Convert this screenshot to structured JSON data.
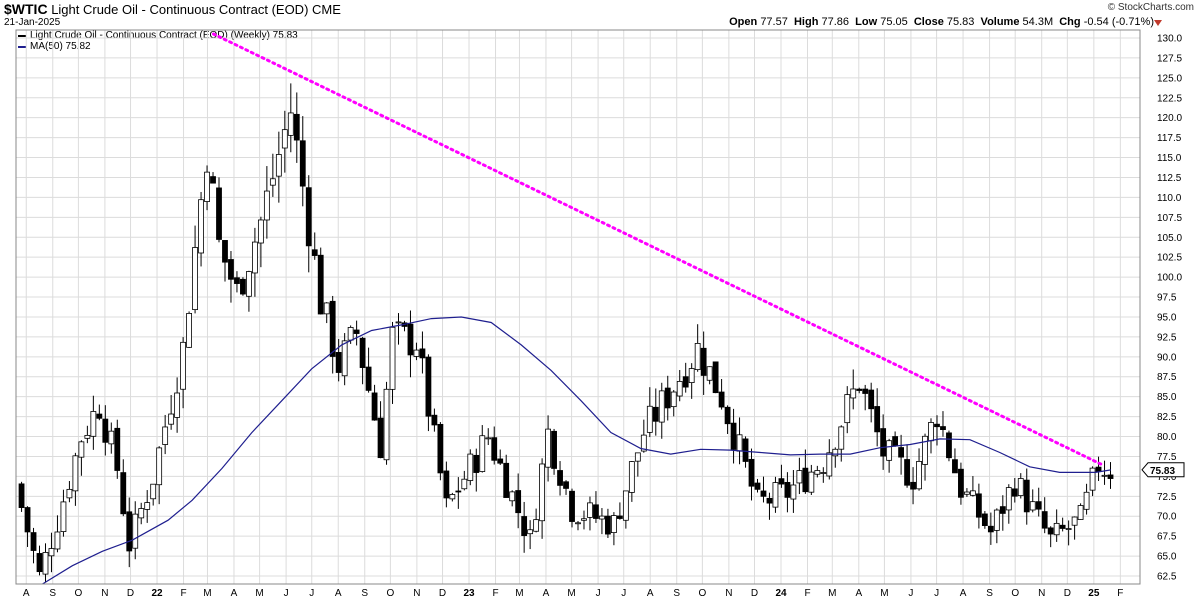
{
  "header": {
    "symbol": "$WTIC",
    "name": "Light Crude Oil - Continuous Contract (EOD)",
    "exchange": "CME",
    "date": "21-Jan-2025",
    "brand": "© StockCharts.com",
    "open_label": "Open",
    "open": "77.57",
    "high_label": "High",
    "high": "77.86",
    "low_label": "Low",
    "low": "75.05",
    "close_label": "Close",
    "close": "75.83",
    "volume_label": "Volume",
    "volume": "54.3M",
    "chg_label": "Chg",
    "chg": "-0.54 (-0.71%)"
  },
  "legend": {
    "price": "Light Crude Oil - Continuous Contract (EOD) (Weekly) 75.83",
    "ma": "MA(50) 75.82"
  },
  "colors": {
    "up": "#ffffff",
    "down": "#000000",
    "ma": "#1f1f8f",
    "trendline": "#ff00ff",
    "grid": "#dcdcdc"
  },
  "chart_data": {
    "type": "line",
    "style": "weekly candlestick",
    "ylim": [
      61.5,
      131
    ],
    "y_ticks": [
      62.5,
      65.0,
      67.5,
      70.0,
      72.5,
      75.0,
      77.5,
      80.0,
      82.5,
      85.0,
      87.5,
      90.0,
      92.5,
      95.0,
      97.5,
      100.0,
      102.5,
      105.0,
      107.5,
      110.0,
      112.5,
      115.0,
      117.5,
      120.0,
      122.5,
      125.0,
      127.5,
      130.0
    ],
    "last_price_label": "75.83",
    "grid": true,
    "x_ticks": [
      {
        "label": "A",
        "date": "2021-08-01"
      },
      {
        "label": "S",
        "date": "2021-09-01"
      },
      {
        "label": "O",
        "date": "2021-10-01"
      },
      {
        "label": "N",
        "date": "2021-11-01"
      },
      {
        "label": "D",
        "date": "2021-12-01"
      },
      {
        "label": "22",
        "date": "2022-01-01",
        "bold": true
      },
      {
        "label": "F",
        "date": "2022-02-01"
      },
      {
        "label": "M",
        "date": "2022-03-01"
      },
      {
        "label": "A",
        "date": "2022-04-01"
      },
      {
        "label": "M",
        "date": "2022-05-01"
      },
      {
        "label": "J",
        "date": "2022-06-01"
      },
      {
        "label": "J",
        "date": "2022-07-01"
      },
      {
        "label": "A",
        "date": "2022-08-01"
      },
      {
        "label": "S",
        "date": "2022-09-01"
      },
      {
        "label": "O",
        "date": "2022-10-01"
      },
      {
        "label": "N",
        "date": "2022-11-01"
      },
      {
        "label": "D",
        "date": "2022-12-01"
      },
      {
        "label": "23",
        "date": "2023-01-01",
        "bold": true
      },
      {
        "label": "F",
        "date": "2023-02-01"
      },
      {
        "label": "M",
        "date": "2023-03-01"
      },
      {
        "label": "A",
        "date": "2023-04-01"
      },
      {
        "label": "M",
        "date": "2023-05-01"
      },
      {
        "label": "J",
        "date": "2023-06-01"
      },
      {
        "label": "J",
        "date": "2023-07-01"
      },
      {
        "label": "A",
        "date": "2023-08-01"
      },
      {
        "label": "S",
        "date": "2023-09-01"
      },
      {
        "label": "O",
        "date": "2023-10-01"
      },
      {
        "label": "N",
        "date": "2023-11-01"
      },
      {
        "label": "D",
        "date": "2023-12-01"
      },
      {
        "label": "24",
        "date": "2024-01-01",
        "bold": true
      },
      {
        "label": "F",
        "date": "2024-02-01"
      },
      {
        "label": "M",
        "date": "2024-03-01"
      },
      {
        "label": "A",
        "date": "2024-04-01"
      },
      {
        "label": "M",
        "date": "2024-05-01"
      },
      {
        "label": "J",
        "date": "2024-06-01"
      },
      {
        "label": "J",
        "date": "2024-07-01"
      },
      {
        "label": "A",
        "date": "2024-08-01"
      },
      {
        "label": "S",
        "date": "2024-09-01"
      },
      {
        "label": "O",
        "date": "2024-10-01"
      },
      {
        "label": "N",
        "date": "2024-11-01"
      },
      {
        "label": "D",
        "date": "2024-12-01"
      },
      {
        "label": "25",
        "date": "2025-01-01",
        "bold": true
      },
      {
        "label": "F",
        "date": "2025-02-01"
      }
    ],
    "price_anchors": [
      {
        "x": "2021-07-23",
        "y": 74
      },
      {
        "x": "2021-08-20",
        "y": 62.5
      },
      {
        "x": "2021-09-10",
        "y": 69.5
      },
      {
        "x": "2021-10-08",
        "y": 80
      },
      {
        "x": "2021-10-29",
        "y": 84
      },
      {
        "x": "2021-11-19",
        "y": 76
      },
      {
        "x": "2021-12-03",
        "y": 66.5
      },
      {
        "x": "2021-12-31",
        "y": 75
      },
      {
        "x": "2022-02-04",
        "y": 91
      },
      {
        "x": "2022-03-04",
        "y": 116
      },
      {
        "x": "2022-03-18",
        "y": 104
      },
      {
        "x": "2022-04-08",
        "y": 98
      },
      {
        "x": "2022-05-06",
        "y": 107
      },
      {
        "x": "2022-06-10",
        "y": 121
      },
      {
        "x": "2022-07-15",
        "y": 97
      },
      {
        "x": "2022-08-05",
        "y": 89
      },
      {
        "x": "2022-08-26",
        "y": 93
      },
      {
        "x": "2022-09-23",
        "y": 79
      },
      {
        "x": "2022-10-07",
        "y": 92.5
      },
      {
        "x": "2022-11-04",
        "y": 92
      },
      {
        "x": "2022-12-09",
        "y": 71
      },
      {
        "x": "2023-01-27",
        "y": 80
      },
      {
        "x": "2023-03-17",
        "y": 67
      },
      {
        "x": "2023-04-07",
        "y": 80.5
      },
      {
        "x": "2023-05-05",
        "y": 71
      },
      {
        "x": "2023-06-23",
        "y": 69
      },
      {
        "x": "2023-07-28",
        "y": 80.5
      },
      {
        "x": "2023-09-29",
        "y": 91
      },
      {
        "x": "2023-10-27",
        "y": 85
      },
      {
        "x": "2023-12-08",
        "y": 71.5
      },
      {
        "x": "2024-01-12",
        "y": 73
      },
      {
        "x": "2024-02-23",
        "y": 77
      },
      {
        "x": "2024-04-05",
        "y": 87
      },
      {
        "x": "2024-05-03",
        "y": 78
      },
      {
        "x": "2024-06-07",
        "y": 75
      },
      {
        "x": "2024-07-05",
        "y": 83
      },
      {
        "x": "2024-08-02",
        "y": 73.5
      },
      {
        "x": "2024-09-06",
        "y": 68
      },
      {
        "x": "2024-10-04",
        "y": 74.5
      },
      {
        "x": "2024-11-15",
        "y": 67
      },
      {
        "x": "2024-12-20",
        "y": 69.5
      },
      {
        "x": "2025-01-10",
        "y": 76.5
      },
      {
        "x": "2025-01-21",
        "y": 75.83
      }
    ],
    "series": [
      {
        "name": "MA(50)",
        "points": [
          {
            "x": "2021-08-20",
            "y": 61.5
          },
          {
            "x": "2021-09-24",
            "y": 63.8
          },
          {
            "x": "2021-10-29",
            "y": 65.6
          },
          {
            "x": "2021-12-03",
            "y": 67
          },
          {
            "x": "2022-01-14",
            "y": 69.5
          },
          {
            "x": "2022-02-11",
            "y": 72
          },
          {
            "x": "2022-03-18",
            "y": 76
          },
          {
            "x": "2022-04-22",
            "y": 80.5
          },
          {
            "x": "2022-05-27",
            "y": 84.5
          },
          {
            "x": "2022-07-01",
            "y": 88.5
          },
          {
            "x": "2022-08-05",
            "y": 91.5
          },
          {
            "x": "2022-09-09",
            "y": 93.3
          },
          {
            "x": "2022-10-14",
            "y": 94
          },
          {
            "x": "2022-11-18",
            "y": 94.8
          },
          {
            "x": "2022-12-23",
            "y": 95
          },
          {
            "x": "2023-01-27",
            "y": 94.3
          },
          {
            "x": "2023-03-03",
            "y": 91.5
          },
          {
            "x": "2023-04-07",
            "y": 88.3
          },
          {
            "x": "2023-05-12",
            "y": 84.5
          },
          {
            "x": "2023-06-16",
            "y": 80.5
          },
          {
            "x": "2023-07-21",
            "y": 78.5
          },
          {
            "x": "2023-08-25",
            "y": 77.8
          },
          {
            "x": "2023-09-29",
            "y": 78.4
          },
          {
            "x": "2023-11-03",
            "y": 78.3
          },
          {
            "x": "2023-12-08",
            "y": 78
          },
          {
            "x": "2024-01-12",
            "y": 77.7
          },
          {
            "x": "2024-02-16",
            "y": 77.8
          },
          {
            "x": "2024-03-22",
            "y": 77.8
          },
          {
            "x": "2024-04-26",
            "y": 78.6
          },
          {
            "x": "2024-05-31",
            "y": 79
          },
          {
            "x": "2024-07-05",
            "y": 79.7
          },
          {
            "x": "2024-08-09",
            "y": 79.6
          },
          {
            "x": "2024-09-13",
            "y": 78
          },
          {
            "x": "2024-10-18",
            "y": 76.2
          },
          {
            "x": "2024-11-22",
            "y": 75.5
          },
          {
            "x": "2025-01-03",
            "y": 75.5
          },
          {
            "x": "2025-01-21",
            "y": 75.82
          }
        ]
      },
      {
        "name": "trendline",
        "points": [
          {
            "x": "2022-03-08",
            "y": 130.5
          },
          {
            "x": "2025-01-10",
            "y": 76.5
          }
        ]
      }
    ]
  }
}
